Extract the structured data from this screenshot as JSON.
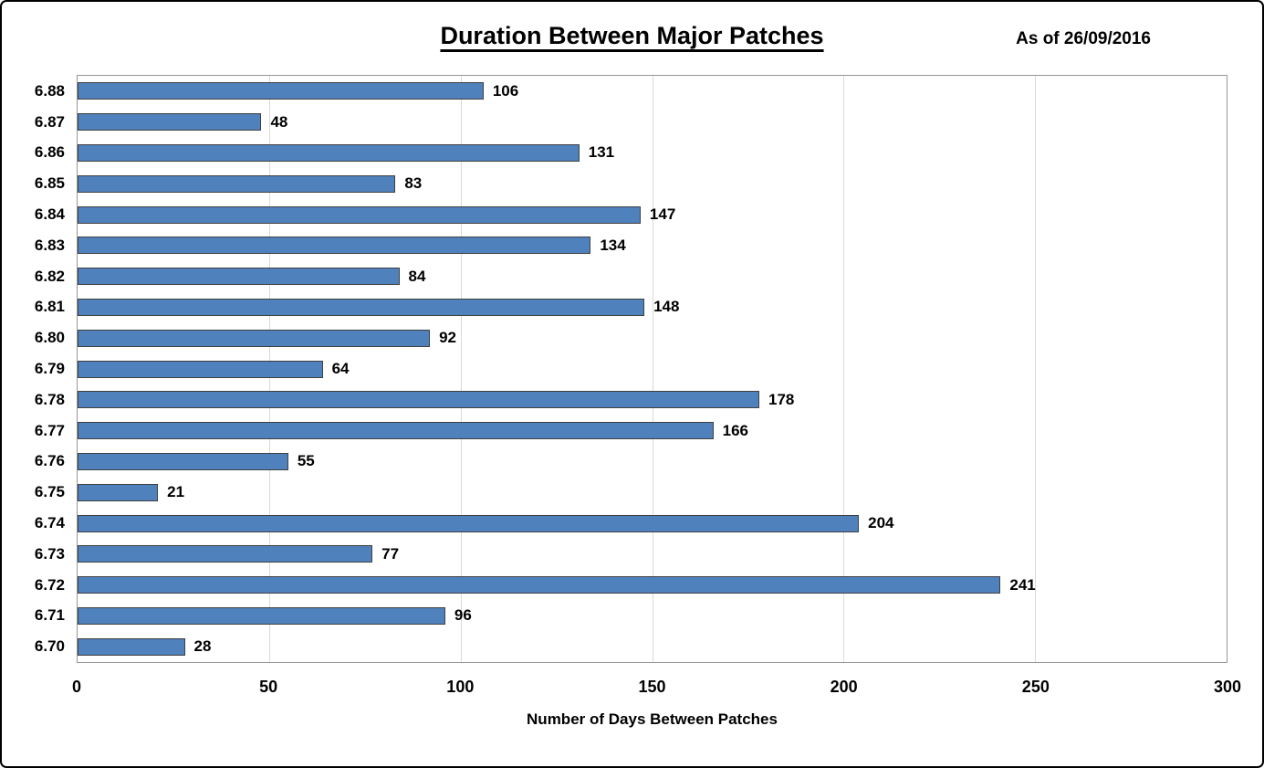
{
  "chart_data": {
    "type": "bar",
    "orientation": "horizontal",
    "title": "Duration Between Major Patches",
    "subtitle": "As of 26/09/2016",
    "categories": [
      "6.88",
      "6.87",
      "6.86",
      "6.85",
      "6.84",
      "6.83",
      "6.82",
      "6.81",
      "6.80",
      "6.79",
      "6.78",
      "6.77",
      "6.76",
      "6.75",
      "6.74",
      "6.73",
      "6.72",
      "6.71",
      "6.70"
    ],
    "values": [
      106,
      48,
      131,
      83,
      147,
      134,
      84,
      148,
      92,
      64,
      178,
      166,
      55,
      21,
      204,
      77,
      241,
      96,
      28
    ],
    "xlabel": "Number of Days Between Patches",
    "ylabel": "",
    "xlim": [
      0,
      300
    ],
    "xticks": [
      0,
      50,
      100,
      150,
      200,
      250,
      300
    ],
    "grid": "vertical",
    "legend": "none",
    "data_labels": "outside-end",
    "colors": {
      "bar_fill": "#4F81BD",
      "bar_border": "#404040",
      "gridline": "#d9d9d9",
      "plot_border": "#969696",
      "figure_border": "#000000",
      "text": "#000000"
    }
  }
}
